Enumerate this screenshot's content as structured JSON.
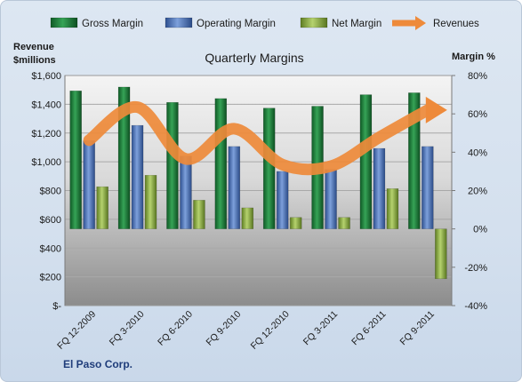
{
  "chart_data": {
    "type": "bar",
    "title": "Quarterly Margins",
    "categories": [
      "FQ 12-2009",
      "FQ 3-2010",
      "FQ 6-2010",
      "FQ 9-2010",
      "FQ 12-2010",
      "FQ 3-2011",
      "FQ 6-2011",
      "FQ 9-2011"
    ],
    "series": [
      {
        "name": "Gross Margin",
        "axis": "right",
        "color": "#1f7a3a",
        "values": [
          72,
          74,
          66,
          68,
          63,
          64,
          70,
          71
        ]
      },
      {
        "name": "Operating Margin",
        "axis": "right",
        "color": "#4d72b3",
        "values": [
          46,
          54,
          38,
          43,
          30,
          31,
          42,
          43
        ]
      },
      {
        "name": "Net Margin",
        "axis": "right",
        "color": "#8aab45",
        "values": [
          22,
          28,
          15,
          11,
          6,
          6,
          21,
          -26
        ]
      },
      {
        "name": "Revenues",
        "axis": "left",
        "type": "line",
        "color": "#ee8a3a",
        "values": [
          1150,
          1380,
          1020,
          1230,
          980,
          970,
          1170,
          1360
        ]
      }
    ],
    "y_left": {
      "label_line1": "Revenue",
      "label_line2": "$millions",
      "range": [
        0,
        1600
      ],
      "ticks": [
        "$-",
        "$200",
        "$400",
        "$600",
        "$800",
        "$1,000",
        "$1,200",
        "$1,400",
        "$1,600"
      ]
    },
    "y_right": {
      "label": "Margin %",
      "range": [
        -40,
        80
      ],
      "ticks": [
        "-40%",
        "-20%",
        "0%",
        "20%",
        "40%",
        "60%",
        "80%"
      ]
    },
    "legend_position": "top",
    "grid": true
  },
  "footer": {
    "company": "El Paso Corp."
  }
}
